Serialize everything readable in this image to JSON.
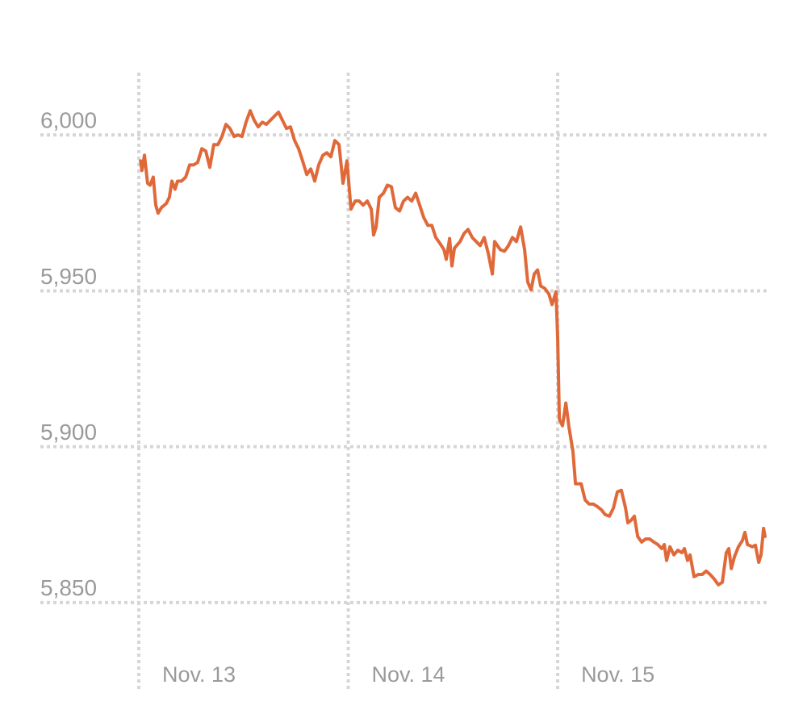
{
  "chart_data": {
    "type": "line",
    "color": "#e0693a",
    "grid": true,
    "x": [
      0.008,
      0.015,
      0.027,
      0.042,
      0.054,
      0.069,
      0.081,
      0.092,
      0.108,
      0.131,
      0.146,
      0.158,
      0.173,
      0.185,
      0.204,
      0.224,
      0.243,
      0.262,
      0.281,
      0.301,
      0.32,
      0.339,
      0.358,
      0.378,
      0.397,
      0.416,
      0.435,
      0.455,
      0.474,
      0.493,
      0.512,
      0.532,
      0.551,
      0.57,
      0.59,
      0.609,
      0.628,
      0.647,
      0.667,
      0.686,
      0.705,
      0.724,
      0.744,
      0.763,
      0.782,
      0.802,
      0.821,
      0.84,
      0.859,
      0.879,
      0.898,
      0.917,
      0.936,
      0.956,
      0.975,
      0.994,
      1.013,
      1.033,
      1.052,
      1.071,
      1.091,
      1.11,
      1.121,
      1.133,
      1.148,
      1.168,
      1.187,
      1.206,
      1.225,
      1.245,
      1.264,
      1.283,
      1.303,
      1.322,
      1.341,
      1.36,
      1.38,
      1.399,
      1.418,
      1.437,
      1.457,
      1.468,
      1.484,
      1.495,
      1.507,
      1.534,
      1.553,
      1.572,
      1.592,
      1.611,
      1.63,
      1.649,
      1.669,
      1.688,
      1.699,
      1.726,
      1.746,
      1.765,
      1.784,
      1.803,
      1.823,
      1.842,
      1.857,
      1.873,
      1.888,
      1.904,
      1.919,
      1.938,
      1.958,
      1.973,
      1.992,
      2.0,
      2.008,
      2.023,
      2.039,
      2.054,
      2.073,
      2.085,
      2.112,
      2.131,
      2.15,
      2.17,
      2.189,
      2.208,
      2.227,
      2.247,
      2.266,
      2.285,
      2.304,
      2.324,
      2.335,
      2.351,
      2.366,
      2.382,
      2.401,
      2.42,
      2.439,
      2.459,
      2.478,
      2.497,
      2.509,
      2.52,
      2.536,
      2.555,
      2.574,
      2.593,
      2.605,
      2.62,
      2.632,
      2.651,
      2.671,
      2.69,
      2.709,
      2.728,
      2.748,
      2.767,
      2.786,
      2.805,
      2.817,
      2.829,
      2.844,
      2.863,
      2.882,
      2.894,
      2.906,
      2.929,
      2.944,
      2.96,
      2.971,
      2.983,
      2.99
    ],
    "values": [
      5991.7,
      5988.6,
      5993.5,
      5984.5,
      5983.9,
      5986.5,
      5977.5,
      5974.9,
      5976.7,
      5978.0,
      5980.0,
      5985.2,
      5982.6,
      5985.2,
      5985.2,
      5986.5,
      5990.4,
      5990.4,
      5991.2,
      5995.6,
      5994.8,
      5989.6,
      5996.9,
      5996.9,
      5999.5,
      6003.4,
      6002.1,
      5999.5,
      6000,
      5999.5,
      6004.1,
      6007.8,
      6004.7,
      6002.6,
      6004.1,
      6003.4,
      6004.7,
      6006.0,
      6007.3,
      6004.7,
      6002.1,
      6002.6,
      5998.2,
      5995.6,
      5991.7,
      5987.3,
      5989.1,
      5985.2,
      5990.4,
      5993.5,
      5994.3,
      5993.0,
      5998.2,
      5996.9,
      5984.5,
      5991.7,
      5976.2,
      5978.8,
      5978.8,
      5977.5,
      5978.8,
      5976.2,
      5967.9,
      5970.5,
      5980.0,
      5981.3,
      5983.9,
      5983.4,
      5976.7,
      5975.6,
      5978.8,
      5980.0,
      5978.8,
      5981.3,
      5977.5,
      5973.6,
      5971.0,
      5971.0,
      5967.1,
      5965.3,
      5963.2,
      5960.1,
      5966.8,
      5958.0,
      5963.7,
      5965.8,
      5968.4,
      5969.7,
      5967.1,
      5965.8,
      5964.5,
      5967.1,
      5961.9,
      5955.4,
      5965.8,
      5963.2,
      5962.7,
      5964.5,
      5967.1,
      5965.8,
      5970.5,
      5963.2,
      5952.8,
      5950.3,
      5955.4,
      5956.7,
      5951.5,
      5950.8,
      5949.0,
      5945.6,
      5949.7,
      5934.7,
      5908.8,
      5906.7,
      5914.0,
      5906.2,
      5898.4,
      5888.1,
      5888.1,
      5882.9,
      5881.6,
      5881.6,
      5880.8,
      5879.8,
      5878.2,
      5877.7,
      5880.3,
      5885.5,
      5886.0,
      5880.3,
      5875.6,
      5876.4,
      5877.7,
      5871.2,
      5869.4,
      5870.4,
      5870.4,
      5869.4,
      5868.6,
      5867.3,
      5868.6,
      5863.5,
      5867.9,
      5865.3,
      5866.8,
      5866.0,
      5867.3,
      5863.5,
      5865.3,
      5858.3,
      5859.0,
      5859.0,
      5860.1,
      5859.0,
      5857.5,
      5855.7,
      5856.5,
      5866.0,
      5867.3,
      5860.9,
      5864.7,
      5867.9,
      5869.9,
      5872.5,
      5868.6,
      5867.9,
      5868.4,
      5862.9,
      5865.3,
      5873.8,
      5871.2
    ],
    "xlim": [
      0,
      2.99
    ],
    "xticks": [
      {
        "value": 0,
        "label": "Nov. 13"
      },
      {
        "value": 1,
        "label": "Nov. 14"
      },
      {
        "value": 2,
        "label": "Nov. 15"
      }
    ],
    "ylim": [
      5822,
      6020
    ],
    "yticks": [
      {
        "value": 5850,
        "label": "5,850"
      },
      {
        "value": 5900,
        "label": "5,900"
      },
      {
        "value": 5950,
        "label": "5,950"
      },
      {
        "value": 6000,
        "label": "6,000"
      }
    ]
  }
}
